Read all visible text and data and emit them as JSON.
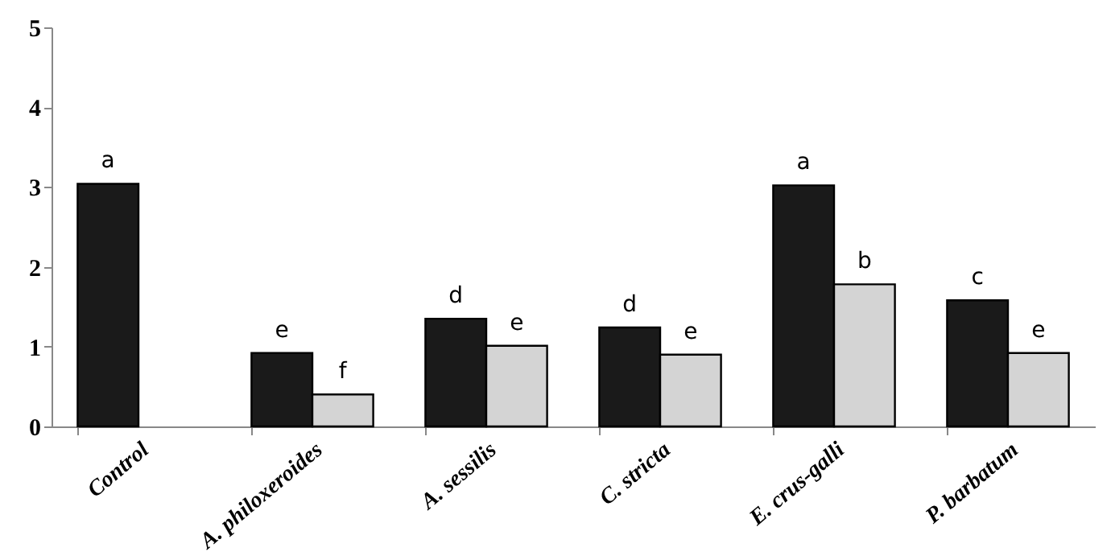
{
  "chart_data": {
    "type": "bar",
    "categories": [
      "Control",
      "A. philoxeroides",
      "A. sessilis",
      "C. stricta",
      "E. crus-galli",
      "P. barbatum"
    ],
    "series": [
      {
        "color": "#1a1a1a",
        "values": [
          3.04,
          0.92,
          1.35,
          1.24,
          3.02,
          1.58
        ],
        "value_labels": [
          "a",
          "e",
          "d",
          "d",
          "a",
          "c"
        ]
      },
      {
        "color": "#d4d4d4",
        "values": [
          null,
          0.4,
          1.01,
          0.9,
          1.78,
          0.92
        ],
        "value_labels": [
          null,
          "f",
          "e",
          "e",
          "b",
          "e"
        ]
      }
    ],
    "ylim": [
      0,
      5
    ],
    "yticks": [
      0,
      1,
      2,
      3,
      4,
      5
    ],
    "grid": false,
    "legend": false
  }
}
